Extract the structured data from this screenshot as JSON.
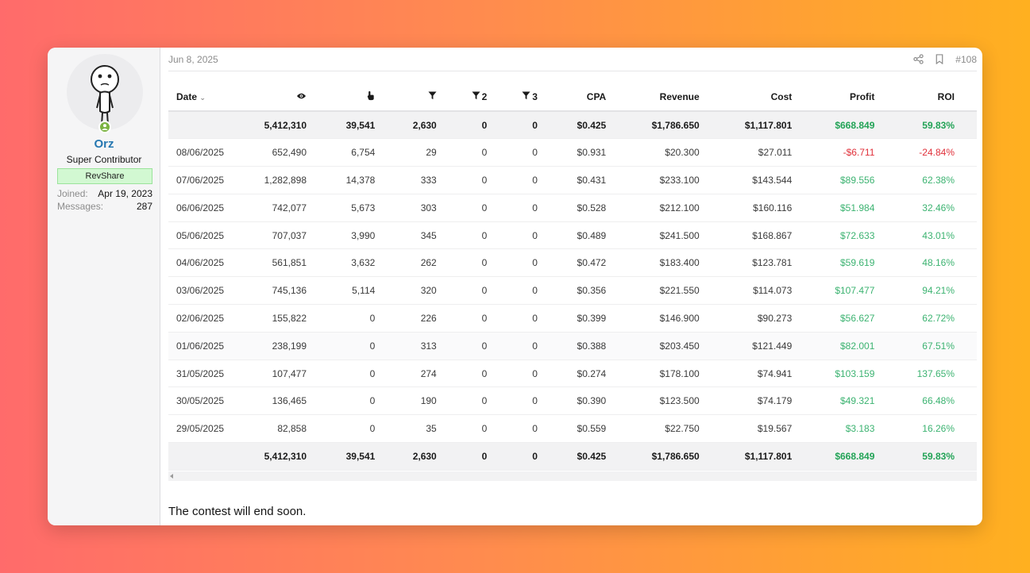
{
  "user": {
    "name": "Orz",
    "title": "Super Contributor",
    "banner": "RevShare",
    "joined_label": "Joined:",
    "joined_value": "Apr 19, 2023",
    "messages_label": "Messages:",
    "messages_value": "287"
  },
  "post": {
    "date": "Jun 8, 2025",
    "number": "#108",
    "text": "The contest will end soon."
  },
  "icons": [
    "share-icon",
    "bookmark-icon",
    "eye-icon",
    "pointer-icon",
    "funnel-icon"
  ],
  "colors": {
    "positive": "#3cb371",
    "negative": "#e0303a",
    "link": "#2577b1"
  },
  "table": {
    "headers": {
      "date": "Date",
      "views": "",
      "clicks": "",
      "f1": "",
      "f2": "2",
      "f3": "3",
      "cpa": "CPA",
      "revenue": "Revenue",
      "cost": "Cost",
      "profit": "Profit",
      "roi": "ROI"
    },
    "total": [
      "",
      "5,412,310",
      "39,541",
      "2,630",
      "0",
      "0",
      "$0.425",
      "$1,786.650",
      "$1,117.801",
      "$668.849",
      "59.83%"
    ],
    "rows": [
      [
        "08/06/2025",
        "652,490",
        "6,754",
        "29",
        "0",
        "0",
        "$0.931",
        "$20.300",
        "$27.011",
        "-$6.711",
        "-24.84%"
      ],
      [
        "07/06/2025",
        "1,282,898",
        "14,378",
        "333",
        "0",
        "0",
        "$0.431",
        "$233.100",
        "$143.544",
        "$89.556",
        "62.38%"
      ],
      [
        "06/06/2025",
        "742,077",
        "5,673",
        "303",
        "0",
        "0",
        "$0.528",
        "$212.100",
        "$160.116",
        "$51.984",
        "32.46%"
      ],
      [
        "05/06/2025",
        "707,037",
        "3,990",
        "345",
        "0",
        "0",
        "$0.489",
        "$241.500",
        "$168.867",
        "$72.633",
        "43.01%"
      ],
      [
        "04/06/2025",
        "561,851",
        "3,632",
        "262",
        "0",
        "0",
        "$0.472",
        "$183.400",
        "$123.781",
        "$59.619",
        "48.16%"
      ],
      [
        "03/06/2025",
        "745,136",
        "5,114",
        "320",
        "0",
        "0",
        "$0.356",
        "$221.550",
        "$114.073",
        "$107.477",
        "94.21%"
      ],
      [
        "02/06/2025",
        "155,822",
        "0",
        "226",
        "0",
        "0",
        "$0.399",
        "$146.900",
        "$90.273",
        "$56.627",
        "62.72%"
      ],
      [
        "01/06/2025",
        "238,199",
        "0",
        "313",
        "0",
        "0",
        "$0.388",
        "$203.450",
        "$121.449",
        "$82.001",
        "67.51%"
      ],
      [
        "31/05/2025",
        "107,477",
        "0",
        "274",
        "0",
        "0",
        "$0.274",
        "$178.100",
        "$74.941",
        "$103.159",
        "137.65%"
      ],
      [
        "30/05/2025",
        "136,465",
        "0",
        "190",
        "0",
        "0",
        "$0.390",
        "$123.500",
        "$74.179",
        "$49.321",
        "66.48%"
      ],
      [
        "29/05/2025",
        "82,858",
        "0",
        "35",
        "0",
        "0",
        "$0.559",
        "$22.750",
        "$19.567",
        "$3.183",
        "16.26%"
      ]
    ]
  }
}
